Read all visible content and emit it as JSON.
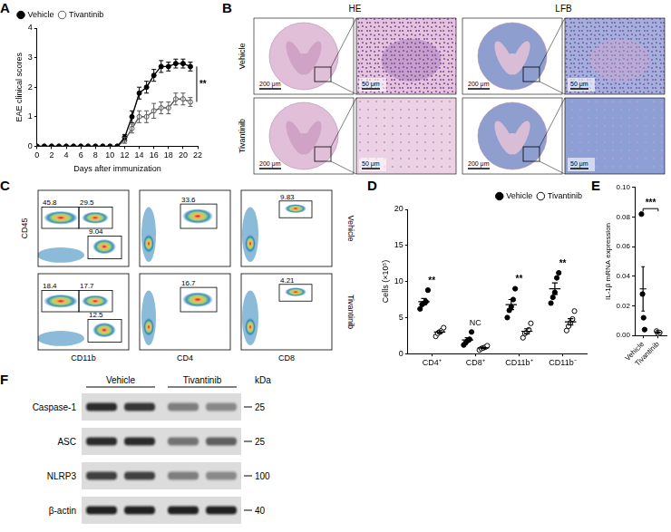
{
  "chart_data": [
    {
      "panel": "A",
      "type": "line",
      "x_label": "Days after immunization",
      "y_label": "EAE clinical scores",
      "x": [
        0,
        1,
        2,
        3,
        4,
        5,
        6,
        7,
        8,
        9,
        10,
        11,
        12,
        13,
        14,
        15,
        16,
        17,
        18,
        19,
        20,
        21
      ],
      "xlim": [
        0,
        22
      ],
      "xticks": [
        0,
        2,
        4,
        6,
        8,
        10,
        12,
        14,
        16,
        18,
        20,
        22
      ],
      "ylim": [
        0,
        4
      ],
      "yticks": [
        0,
        1,
        2,
        3,
        4
      ],
      "grid": false,
      "legend": "upper left",
      "series": [
        {
          "name": "Vehicle",
          "color": "#000000",
          "marker": "circle",
          "values": [
            0,
            0,
            0,
            0,
            0,
            0,
            0,
            0,
            0,
            0,
            0,
            0,
            0.3,
            1.0,
            1.8,
            2.0,
            2.4,
            2.7,
            2.7,
            2.8,
            2.8,
            2.7
          ],
          "errors": [
            0,
            0,
            0,
            0,
            0,
            0,
            0,
            0,
            0,
            0,
            0,
            0,
            0.1,
            0.2,
            0.2,
            0.2,
            0.2,
            0.2,
            0.15,
            0.15,
            0.15,
            0.15
          ]
        },
        {
          "name": "Tivantinib",
          "color": "#595959",
          "marker": "circle_open",
          "values": [
            0,
            0,
            0,
            0,
            0,
            0,
            0,
            0,
            0,
            0,
            0,
            0,
            0.2,
            0.6,
            1.0,
            1.0,
            1.2,
            1.3,
            1.3,
            1.6,
            1.6,
            1.5
          ],
          "errors": [
            0,
            0,
            0,
            0,
            0,
            0,
            0,
            0,
            0,
            0,
            0,
            0,
            0.1,
            0.15,
            0.2,
            0.2,
            0.25,
            0.2,
            0.2,
            0.2,
            0.2,
            0.15
          ]
        }
      ],
      "annotations": [
        "**"
      ]
    },
    {
      "panel": "D",
      "type": "dot_plot",
      "categories": [
        "CD4⁺",
        "CD8⁺",
        "CD11b⁺",
        "CD11b⁻"
      ],
      "y_label": "Cells (×10⁵)",
      "ylim": [
        0,
        20
      ],
      "yticks": [
        0,
        5,
        10,
        15,
        20
      ],
      "grid": false,
      "legend": "upper right",
      "series": [
        {
          "name": "Vehicle",
          "color": "#000000",
          "marker": "circle",
          "values": [
            7.2,
            1.9,
            6.8,
            9.0
          ],
          "errors": [
            0.45,
            0.3,
            0.7,
            0.8
          ],
          "points": [
            [
              6.2,
              6.8,
              7.0,
              7.2,
              8.8
            ],
            [
              1.2,
              1.5,
              1.8,
              2.0,
              3.0
            ],
            [
              5.0,
              6.0,
              6.5,
              7.5,
              9.0
            ],
            [
              7.0,
              7.8,
              8.5,
              10.5,
              11.2
            ]
          ]
        },
        {
          "name": "Tivantinib",
          "color": "#000000",
          "marker": "circle_open",
          "values": [
            3.0,
            0.8,
            3.1,
            4.4
          ],
          "errors": [
            0.2,
            0.1,
            0.35,
            0.45
          ],
          "points": [
            [
              2.4,
              2.8,
              3.0,
              3.2,
              3.6
            ],
            [
              0.5,
              0.7,
              0.8,
              0.9,
              1.1
            ],
            [
              2.2,
              2.8,
              3.0,
              3.3,
              4.2
            ],
            [
              3.2,
              3.8,
              4.3,
              4.8,
              5.9
            ]
          ]
        }
      ],
      "significance": [
        "**",
        "NC",
        "**",
        "**"
      ]
    },
    {
      "panel": "E",
      "type": "dot_plot",
      "categories": [
        "Vehicle",
        "Tivantinib"
      ],
      "y_label": "IL-1β mRNA expression",
      "ylim": [
        0,
        0.1
      ],
      "yticks": [
        {
          "value": 0,
          "label": "0.00"
        },
        {
          "value": 0.02,
          "label": "0.02"
        },
        {
          "value": 0.04,
          "label": "0.04"
        },
        {
          "value": 0.06,
          "label": "0.06"
        },
        {
          "value": 0.08,
          "label": "0.08"
        },
        {
          "value": 0.1,
          "label": "0.10"
        }
      ],
      "grid": false,
      "series": [
        {
          "color": "#000000",
          "colors": [
            "#000000",
            "#ffffff"
          ],
          "values": [
            0.0315,
            0.002
          ],
          "errors": [
            0.015,
            0.0005
          ],
          "points": [
            [
              0.082,
              0.028,
              0.012,
              0.004
            ],
            [
              0.003,
              0.002,
              0.001,
              0.002
            ]
          ]
        }
      ],
      "annotations": [
        "***"
      ]
    }
  ],
  "histology": {
    "panel": "B",
    "stains": [
      "HE",
      "LFB"
    ],
    "rows": [
      "Vehicle",
      "Tivantinib"
    ],
    "scale_bars": [
      "200 μm",
      "50 μm"
    ]
  },
  "flow_cytometry": {
    "panel": "C",
    "y_label": "CD45",
    "x_labels": [
      "CD11b",
      "CD4",
      "CD8"
    ],
    "rows": [
      {
        "label": "Vehicle",
        "gates": [
          [
            45.8,
            29.5,
            9.04
          ],
          [
            33.6
          ],
          [
            9.83
          ]
        ]
      },
      {
        "label": "Tivantinib",
        "gates": [
          [
            18.4,
            17.7,
            12.5
          ],
          [
            16.7
          ],
          [
            4.21
          ]
        ]
      }
    ]
  },
  "western_blot": {
    "panel": "F",
    "groups": [
      "Vehicle",
      "Tivantinib"
    ],
    "unit": "kDa",
    "rows": [
      {
        "label": "Caspase-1",
        "kda": 25,
        "band_intensity": [
          0.85,
          0.8,
          0.45,
          0.4
        ]
      },
      {
        "label": "ASC",
        "kda": 25,
        "band_intensity": [
          0.85,
          0.85,
          0.5,
          0.6
        ]
      },
      {
        "label": "NLRP3",
        "kda": 100,
        "band_intensity": [
          0.75,
          0.75,
          0.45,
          0.4
        ]
      },
      {
        "label": "β-actin",
        "kda": 40,
        "band_intensity": [
          0.9,
          0.9,
          0.9,
          0.9
        ]
      }
    ]
  }
}
